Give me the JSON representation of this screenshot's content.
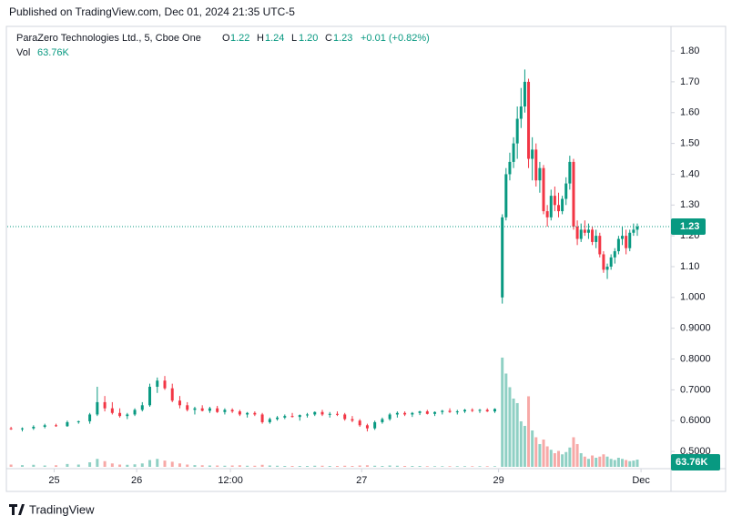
{
  "header": {
    "published": "Published on TradingView.com, Dec 01, 2024 21:35 UTC-5"
  },
  "legend": {
    "symbol": "ParaZero Technologies Ltd., 5, Cboe One",
    "o_key": "O",
    "o": "1.22",
    "h_key": "H",
    "h": "1.24",
    "l_key": "L",
    "l": "1.20",
    "c_key": "C",
    "c": "1.23",
    "change": "+0.01 (+0.82%)",
    "vol_key": "Vol",
    "vol": "63.76K"
  },
  "footer": {
    "brand": "TradingView"
  },
  "chart_data": {
    "type": "candlestick",
    "x": [
      0,
      3,
      6,
      9,
      12,
      15,
      18,
      21,
      23,
      25,
      27,
      29,
      31,
      33,
      35,
      37,
      39,
      41,
      43,
      45,
      47,
      49,
      51,
      53,
      55,
      57,
      59,
      61,
      63,
      65,
      67,
      69,
      71,
      73,
      75,
      77,
      79,
      81,
      83,
      85,
      87,
      89,
      91,
      93,
      95,
      97,
      99,
      101,
      103,
      105,
      107,
      109,
      111,
      113,
      115,
      117,
      119,
      121,
      123,
      125,
      127,
      129,
      131,
      132,
      133,
      134,
      135,
      136,
      137,
      138,
      139,
      140,
      141,
      142,
      143,
      144,
      145,
      146,
      147,
      148,
      149,
      150,
      151,
      152,
      153,
      154,
      155,
      156,
      157,
      158,
      159,
      160,
      161,
      162,
      163,
      164,
      165,
      166,
      167
    ],
    "open": [
      0.575,
      0.572,
      0.575,
      0.58,
      0.585,
      0.582,
      0.595,
      0.598,
      0.62,
      0.66,
      0.64,
      0.625,
      0.615,
      0.62,
      0.635,
      0.65,
      0.71,
      0.73,
      0.705,
      0.665,
      0.65,
      0.635,
      0.64,
      0.632,
      0.64,
      0.628,
      0.635,
      0.63,
      0.62,
      0.625,
      0.62,
      0.595,
      0.605,
      0.61,
      0.615,
      0.612,
      0.618,
      0.62,
      0.628,
      0.62,
      0.622,
      0.62,
      0.605,
      0.6,
      0.585,
      0.575,
      0.595,
      0.605,
      0.62,
      0.625,
      0.62,
      0.625,
      0.63,
      0.622,
      0.628,
      0.632,
      0.628,
      0.63,
      0.635,
      0.632,
      0.635,
      0.63,
      1.0,
      1.26,
      1.4,
      1.44,
      1.5,
      1.58,
      1.62,
      1.7,
      1.45,
      1.48,
      1.38,
      1.42,
      1.28,
      1.26,
      1.33,
      1.3,
      1.28,
      1.32,
      1.37,
      1.44,
      1.23,
      1.19,
      1.22,
      1.21,
      1.22,
      1.18,
      1.2,
      1.14,
      1.09,
      1.1,
      1.13,
      1.15,
      1.19,
      1.2,
      1.16,
      1.21,
      1.22
    ],
    "high": [
      0.58,
      0.578,
      0.585,
      0.59,
      0.59,
      0.6,
      0.6,
      0.625,
      0.71,
      0.68,
      0.66,
      0.64,
      0.625,
      0.64,
      0.66,
      0.72,
      0.74,
      0.745,
      0.72,
      0.68,
      0.66,
      0.645,
      0.65,
      0.645,
      0.648,
      0.64,
      0.64,
      0.635,
      0.628,
      0.63,
      0.625,
      0.61,
      0.615,
      0.62,
      0.625,
      0.62,
      0.625,
      0.63,
      0.635,
      0.628,
      0.63,
      0.625,
      0.615,
      0.605,
      0.59,
      0.6,
      0.61,
      0.625,
      0.63,
      0.63,
      0.628,
      0.632,
      0.635,
      0.63,
      0.635,
      0.64,
      0.635,
      0.638,
      0.64,
      0.638,
      0.64,
      0.64,
      1.27,
      1.42,
      1.47,
      1.52,
      1.62,
      1.68,
      1.74,
      1.71,
      1.52,
      1.5,
      1.44,
      1.43,
      1.3,
      1.35,
      1.36,
      1.34,
      1.33,
      1.39,
      1.46,
      1.45,
      1.25,
      1.24,
      1.25,
      1.24,
      1.23,
      1.22,
      1.21,
      1.15,
      1.11,
      1.14,
      1.16,
      1.2,
      1.23,
      1.22,
      1.22,
      1.24,
      1.24
    ],
    "low": [
      0.57,
      0.565,
      0.57,
      0.575,
      0.58,
      0.58,
      0.59,
      0.59,
      0.615,
      0.63,
      0.62,
      0.61,
      0.605,
      0.615,
      0.63,
      0.645,
      0.69,
      0.7,
      0.66,
      0.64,
      0.63,
      0.62,
      0.63,
      0.625,
      0.625,
      0.62,
      0.625,
      0.615,
      0.61,
      0.615,
      0.59,
      0.59,
      0.6,
      0.605,
      0.61,
      0.6,
      0.61,
      0.615,
      0.615,
      0.61,
      0.615,
      0.6,
      0.595,
      0.58,
      0.565,
      0.57,
      0.59,
      0.6,
      0.61,
      0.615,
      0.612,
      0.618,
      0.62,
      0.615,
      0.62,
      0.625,
      0.62,
      0.625,
      0.628,
      0.625,
      0.628,
      0.625,
      0.98,
      1.25,
      1.38,
      1.42,
      1.45,
      1.55,
      1.6,
      1.42,
      1.38,
      1.36,
      1.34,
      1.27,
      1.23,
      1.25,
      1.28,
      1.26,
      1.27,
      1.3,
      1.35,
      1.22,
      1.17,
      1.18,
      1.2,
      1.19,
      1.17,
      1.16,
      1.13,
      1.08,
      1.06,
      1.09,
      1.11,
      1.14,
      1.17,
      1.14,
      1.15,
      1.2,
      1.2
    ],
    "close": [
      0.572,
      0.575,
      0.58,
      0.585,
      0.582,
      0.595,
      0.598,
      0.62,
      0.66,
      0.64,
      0.625,
      0.615,
      0.62,
      0.635,
      0.65,
      0.71,
      0.73,
      0.705,
      0.665,
      0.65,
      0.635,
      0.64,
      0.632,
      0.64,
      0.628,
      0.635,
      0.63,
      0.62,
      0.625,
      0.62,
      0.595,
      0.605,
      0.61,
      0.615,
      0.612,
      0.618,
      0.62,
      0.628,
      0.62,
      0.622,
      0.62,
      0.605,
      0.6,
      0.585,
      0.575,
      0.595,
      0.605,
      0.62,
      0.625,
      0.62,
      0.625,
      0.63,
      0.622,
      0.628,
      0.632,
      0.628,
      0.63,
      0.635,
      0.632,
      0.635,
      0.63,
      0.638,
      1.26,
      1.4,
      1.44,
      1.5,
      1.58,
      1.62,
      1.7,
      1.45,
      1.48,
      1.38,
      1.42,
      1.28,
      1.26,
      1.33,
      1.3,
      1.28,
      1.32,
      1.37,
      1.44,
      1.23,
      1.19,
      1.22,
      1.21,
      1.22,
      1.18,
      1.2,
      1.14,
      1.09,
      1.1,
      1.13,
      1.15,
      1.19,
      1.2,
      1.16,
      1.21,
      1.22,
      1.23
    ],
    "volume": [
      20,
      15,
      18,
      12,
      14,
      25,
      20,
      40,
      70,
      50,
      30,
      20,
      18,
      22,
      30,
      60,
      70,
      55,
      45,
      30,
      20,
      15,
      14,
      12,
      12,
      10,
      12,
      14,
      10,
      10,
      18,
      12,
      10,
      8,
      8,
      8,
      8,
      10,
      10,
      8,
      8,
      10,
      8,
      12,
      14,
      10,
      8,
      12,
      10,
      8,
      8,
      8,
      6,
      6,
      6,
      6,
      6,
      6,
      6,
      6,
      6,
      6,
      960,
      820,
      700,
      600,
      560,
      400,
      360,
      620,
      320,
      260,
      200,
      240,
      180,
      150,
      120,
      140,
      110,
      130,
      170,
      260,
      200,
      120,
      90,
      70,
      100,
      80,
      90,
      110,
      90,
      70,
      60,
      80,
      70,
      60,
      50,
      55,
      63.76
    ],
    "last_price": 1.23,
    "xlim": [
      -1,
      175.5
    ],
    "xticks": [
      {
        "value": 11.5,
        "label": "25"
      },
      {
        "value": 33.5,
        "label": "26"
      },
      {
        "value": 58.5,
        "label": "12:00"
      },
      {
        "value": 93.5,
        "label": "27"
      },
      {
        "value": 130,
        "label": "29"
      },
      {
        "value": 168,
        "label": "Dec"
      }
    ],
    "ylim": [
      0.45,
      1.877
    ],
    "yticks": [
      {
        "value": 0.5,
        "label": "0.5000"
      },
      {
        "value": 0.6,
        "label": "0.6000"
      },
      {
        "value": 0.7,
        "label": "0.7000"
      },
      {
        "value": 0.8,
        "label": "0.8000"
      },
      {
        "value": 0.9,
        "label": "0.9000"
      },
      {
        "value": 1.0,
        "label": "1.000"
      },
      {
        "value": 1.1,
        "label": "1.10"
      },
      {
        "value": 1.2,
        "label": "1.20"
      },
      {
        "value": 1.3,
        "label": "1.30"
      },
      {
        "value": 1.4,
        "label": "1.40"
      },
      {
        "value": 1.5,
        "label": "1.50"
      },
      {
        "value": 1.6,
        "label": "1.60"
      },
      {
        "value": 1.7,
        "label": "1.70"
      },
      {
        "value": 1.8,
        "label": "1.80"
      }
    ],
    "vlim": [
      0,
      1800
    ],
    "grid": false,
    "up_color": "#089981",
    "down_color": "#f23645",
    "volume_up_color": "#8fd0c4",
    "volume_down_color": "#f7a9a7"
  }
}
